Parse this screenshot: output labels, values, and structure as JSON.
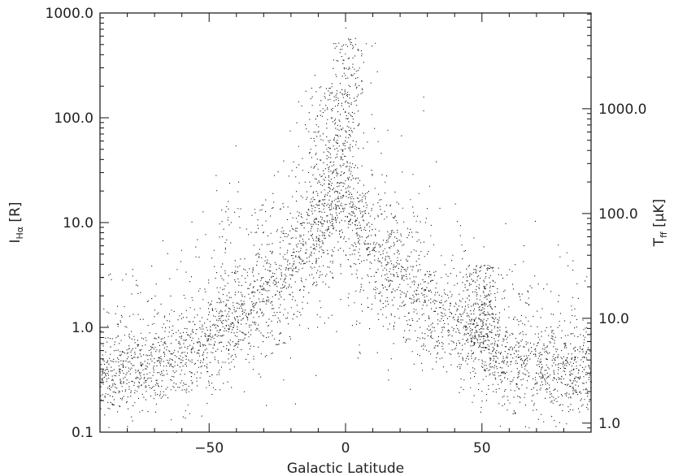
{
  "chart_data": {
    "type": "scatter",
    "title": "",
    "xlabel": "Galactic Latitude",
    "ylabel_main": "I",
    "ylabel_sub": "Hα",
    "ylabel_unit": " [R]",
    "y2label_main": "T",
    "y2label_sub": "ff",
    "y2label_unit": " [μK]",
    "xlim": [
      -90,
      90
    ],
    "ylim": [
      0.1,
      1000
    ],
    "yscale": "log",
    "y2lim": [
      0.82,
      8200
    ],
    "y2scale": "log",
    "grid": false,
    "legend": "none",
    "point_color": "#111111",
    "x_ticks": [
      {
        "value": -50,
        "label": "−50"
      },
      {
        "value": 0,
        "label": "0"
      },
      {
        "value": 50,
        "label": "50"
      }
    ],
    "y_ticks": [
      {
        "value": 0.1,
        "label": "0.1"
      },
      {
        "value": 1,
        "label": "1.0"
      },
      {
        "value": 10,
        "label": "10.0"
      },
      {
        "value": 100,
        "label": "100.0"
      },
      {
        "value": 1000,
        "label": "1000.0"
      }
    ],
    "y2_ticks": [
      {
        "value": 1,
        "label": "1.0"
      },
      {
        "value": 10,
        "label": "10.0"
      },
      {
        "value": 100,
        "label": "100.0"
      },
      {
        "value": 1000,
        "label": "1000.0"
      }
    ],
    "ridge": {
      "x": [
        -90,
        -80,
        -70,
        -60,
        -50,
        -40,
        -30,
        -20,
        -10,
        -5,
        0,
        5,
        10,
        20,
        30,
        40,
        50,
        60,
        70,
        80,
        90
      ],
      "y": [
        0.3,
        0.35,
        0.42,
        0.5,
        0.7,
        1.0,
        1.6,
        2.8,
        5.5,
        8.0,
        12.0,
        6.5,
        4.0,
        2.4,
        1.5,
        0.95,
        0.6,
        0.45,
        0.4,
        0.38,
        0.35
      ]
    },
    "filaments": [
      {
        "x": [
          -50,
          25
        ],
        "y": [
          15,
          100
        ]
      },
      {
        "x": [
          -12,
          -7,
          -2
        ],
        "y": [
          200,
          60,
          300
        ]
      },
      {
        "x": [
          0,
          2
        ],
        "y": [
          600,
          120
        ]
      },
      {
        "x": [
          48,
          52
        ],
        "y": [
          4,
          3
        ]
      }
    ],
    "n_points": 16000
  }
}
